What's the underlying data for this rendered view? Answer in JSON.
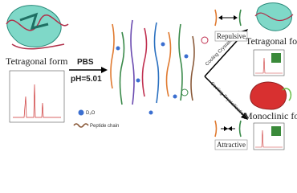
{
  "left": {
    "form_label": "Tetragonal form",
    "legend": {
      "water": "D₂O",
      "chain": "Peptide chain"
    }
  },
  "arrow": {
    "top": "PBS",
    "bottom": "pH=5.01"
  },
  "branches": {
    "upper": {
      "process": "Cooling Crystallization",
      "interaction": "Repulsive",
      "form_label": "Tetragonal form"
    },
    "lower": {
      "process": "Cooling Crystallization",
      "interaction": "Attractive",
      "form_label": "Monoclinic form"
    }
  }
}
